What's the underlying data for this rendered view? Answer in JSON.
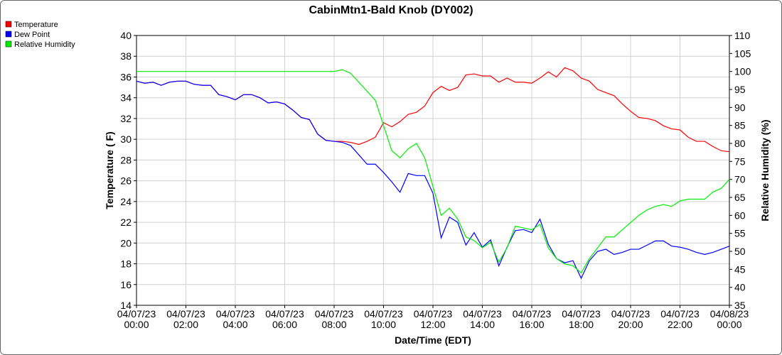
{
  "chart_data": {
    "type": "line",
    "title": "CabinMtn1-Bald Knob (DY002)",
    "x_label": "Date/Time (EDT)",
    "y_label": "Temperature ( F)",
    "y2_label": "Relative Humidity (%)",
    "x": [
      "04/07/23 00:00",
      "04/07/23 00:20",
      "04/07/23 00:40",
      "04/07/23 01:00",
      "04/07/23 01:20",
      "04/07/23 01:40",
      "04/07/23 02:00",
      "04/07/23 02:20",
      "04/07/23 02:40",
      "04/07/23 03:00",
      "04/07/23 03:20",
      "04/07/23 03:40",
      "04/07/23 04:00",
      "04/07/23 04:20",
      "04/07/23 04:40",
      "04/07/23 05:00",
      "04/07/23 05:20",
      "04/07/23 05:40",
      "04/07/23 06:00",
      "04/07/23 06:20",
      "04/07/23 06:40",
      "04/07/23 07:00",
      "04/07/23 07:20",
      "04/07/23 07:40",
      "04/07/23 08:00",
      "04/07/23 08:20",
      "04/07/23 08:40",
      "04/07/23 09:00",
      "04/07/23 09:20",
      "04/07/23 09:40",
      "04/07/23 10:00",
      "04/07/23 10:20",
      "04/07/23 10:40",
      "04/07/23 11:00",
      "04/07/23 11:20",
      "04/07/23 11:40",
      "04/07/23 12:00",
      "04/07/23 12:20",
      "04/07/23 12:40",
      "04/07/23 13:00",
      "04/07/23 13:20",
      "04/07/23 13:40",
      "04/07/23 14:00",
      "04/07/23 14:20",
      "04/07/23 14:40",
      "04/07/23 15:00",
      "04/07/23 15:20",
      "04/07/23 15:40",
      "04/07/23 16:00",
      "04/07/23 16:20",
      "04/07/23 16:40",
      "04/07/23 17:00",
      "04/07/23 17:20",
      "04/07/23 17:40",
      "04/07/23 18:00",
      "04/07/23 18:20",
      "04/07/23 18:40",
      "04/07/23 19:00",
      "04/07/23 19:20",
      "04/07/23 19:40",
      "04/07/23 20:00",
      "04/07/23 20:20",
      "04/07/23 20:40",
      "04/07/23 21:00",
      "04/07/23 21:20",
      "04/07/23 21:40",
      "04/07/23 22:00",
      "04/07/23 22:20",
      "04/07/23 22:40",
      "04/07/23 23:00",
      "04/07/23 23:20",
      "04/07/23 23:40",
      "04/08/23 00:00"
    ],
    "series": [
      {
        "name": "Temperature",
        "color": "#ff0000",
        "axis": "y",
        "values": [
          35.6,
          35.4,
          35.5,
          35.2,
          35.5,
          35.6,
          35.6,
          35.3,
          35.2,
          35.2,
          34.3,
          34.1,
          33.8,
          34.3,
          34.3,
          34.0,
          33.5,
          33.6,
          33.4,
          32.8,
          32.1,
          31.9,
          30.5,
          29.9,
          29.8,
          29.8,
          29.7,
          29.5,
          29.8,
          30.2,
          31.6,
          31.2,
          31.7,
          32.4,
          32.6,
          33.2,
          34.5,
          35.1,
          34.7,
          35.0,
          36.2,
          36.3,
          36.1,
          36.1,
          35.5,
          35.9,
          35.5,
          35.5,
          35.4,
          35.9,
          36.5,
          36.0,
          36.9,
          36.6,
          35.9,
          35.6,
          34.8,
          34.5,
          34.2,
          33.4,
          32.7,
          32.1,
          32.0,
          31.8,
          31.3,
          31.0,
          30.9,
          30.2,
          29.8,
          29.8,
          29.3,
          28.9,
          28.8
        ]
      },
      {
        "name": "Dew Point",
        "color": "#0000ff",
        "axis": "y",
        "values": [
          35.6,
          35.4,
          35.5,
          35.2,
          35.5,
          35.6,
          35.6,
          35.3,
          35.2,
          35.2,
          34.3,
          34.1,
          33.8,
          34.3,
          34.3,
          34.0,
          33.5,
          33.6,
          33.4,
          32.8,
          32.1,
          31.9,
          30.5,
          29.9,
          29.8,
          29.7,
          29.4,
          28.5,
          27.6,
          27.6,
          26.8,
          25.9,
          24.9,
          26.7,
          26.5,
          26.5,
          24.8,
          20.5,
          22.5,
          22.0,
          19.8,
          21.0,
          19.6,
          20.3,
          17.8,
          19.6,
          21.2,
          21.3,
          21.0,
          22.3,
          19.9,
          18.5,
          18.1,
          18.3,
          16.6,
          18.3,
          19.2,
          19.4,
          18.9,
          19.1,
          19.4,
          19.4,
          19.8,
          20.2,
          20.2,
          19.7,
          19.6,
          19.4,
          19.1,
          18.9,
          19.1,
          19.4,
          19.7
        ]
      },
      {
        "name": "Relative Humidity",
        "color": "#00ee00",
        "axis": "y2",
        "values": [
          100,
          100,
          100,
          100,
          100,
          100,
          100,
          100,
          100,
          100,
          100,
          100,
          100,
          100,
          100,
          100,
          100,
          100,
          100,
          100,
          100,
          100,
          100,
          100,
          100,
          100.5,
          99.5,
          97,
          94.5,
          92,
          85,
          78,
          76,
          78.5,
          80,
          76,
          68,
          60,
          62,
          59,
          54,
          53,
          51,
          52.5,
          47,
          51,
          57,
          56.5,
          56,
          57.5,
          51,
          48,
          46.5,
          46,
          44,
          48,
          51,
          54,
          54,
          56,
          58,
          60,
          61.5,
          62.5,
          63,
          62.5,
          64,
          64.5,
          64.5,
          64.5,
          66.5,
          67.5,
          70
        ]
      }
    ],
    "xlim": [
      "04/07/23 00:00",
      "04/08/23 00:00"
    ],
    "xticks": [
      "04/07/23 00:00",
      "04/07/23 02:00",
      "04/07/23 04:00",
      "04/07/23 06:00",
      "04/07/23 08:00",
      "04/07/23 10:00",
      "04/07/23 12:00",
      "04/07/23 14:00",
      "04/07/23 16:00",
      "04/07/23 18:00",
      "04/07/23 20:00",
      "04/07/23 22:00",
      "04/08/23 00:00"
    ],
    "ylim": [
      14,
      40
    ],
    "yticks": [
      14,
      16,
      18,
      20,
      22,
      24,
      26,
      28,
      30,
      32,
      34,
      36,
      38,
      40
    ],
    "y2lim": [
      35,
      110
    ],
    "y2ticks": [
      35,
      40,
      45,
      50,
      55,
      60,
      65,
      70,
      75,
      80,
      85,
      90,
      95,
      100,
      105,
      110
    ],
    "grid": true,
    "legend": "top-left"
  }
}
